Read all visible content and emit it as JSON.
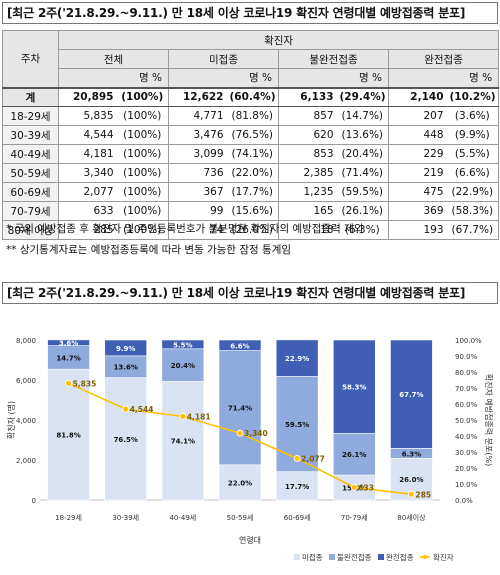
{
  "title": "[최근 2주('21.8.29.~9.11.) 만 18세 이상 코로나19 확진자 연령대별 예방접종력 분포]",
  "table": {
    "week_header": "주차",
    "group_header": "확진자",
    "columns": [
      "전체",
      "미접종",
      "불완전접종",
      "완전접종"
    ],
    "unit": "명 %",
    "rows": [
      {
        "label": "계",
        "cells": [
          [
            "20,895",
            "(100%)"
          ],
          [
            "12,622",
            "(60.4%)"
          ],
          [
            "6,133",
            "(29.4%)"
          ],
          [
            "2,140",
            "(10.2%)"
          ]
        ]
      },
      {
        "label": "18-29세",
        "cells": [
          [
            "5,835",
            "(100%)"
          ],
          [
            "4,771",
            "(81.8%)"
          ],
          [
            "857",
            "(14.7%)"
          ],
          [
            "207",
            "(3.6%)"
          ]
        ]
      },
      {
        "label": "30-39세",
        "cells": [
          [
            "4,544",
            "(100%)"
          ],
          [
            "3,476",
            "(76.5%)"
          ],
          [
            "620",
            "(13.6%)"
          ],
          [
            "448",
            "(9.9%)"
          ]
        ]
      },
      {
        "label": "40-49세",
        "cells": [
          [
            "4,181",
            "(100%)"
          ],
          [
            "3,099",
            "(74.1%)"
          ],
          [
            "853",
            "(20.4%)"
          ],
          [
            "229",
            "(5.5%)"
          ]
        ]
      },
      {
        "label": "50-59세",
        "cells": [
          [
            "3,340",
            "(100%)"
          ],
          [
            "736",
            "(22.0%)"
          ],
          [
            "2,385",
            "(71.4%)"
          ],
          [
            "219",
            "(6.6%)"
          ]
        ]
      },
      {
        "label": "60-69세",
        "cells": [
          [
            "2,077",
            "(100%)"
          ],
          [
            "367",
            "(17.7%)"
          ],
          [
            "1,235",
            "(59.5%)"
          ],
          [
            "475",
            "(22.9%)"
          ]
        ]
      },
      {
        "label": "70-79세",
        "cells": [
          [
            "633",
            "(100%)"
          ],
          [
            "99",
            "(15.6%)"
          ],
          [
            "165",
            "(26.1%)"
          ],
          [
            "369",
            "(58.3%)"
          ]
        ]
      },
      {
        "label": "80세 이상",
        "cells": [
          [
            "285",
            "(100%)"
          ],
          [
            "74",
            "(26.0%)"
          ],
          [
            "18",
            "(6.3%)"
          ],
          [
            "193",
            "(67.7%)"
          ]
        ]
      }
    ]
  },
  "notes": [
    "* 국외 예방접종 후 확진자 및 주민등록번호가 불분명한 확진자의 예방접종력 제외",
    "** 상기통계자료는 예방접종등록에 따라 변동 가능한 잠정 통계임"
  ],
  "chart_title": "[최근 2주('21.8.29.~9.11.) 만 18세 이상 코로나19 확진자 연령대별 예방접종력 분포]",
  "chart_data": {
    "type": "bar",
    "stacked": true,
    "categories": [
      "18-29세",
      "30-39세",
      "40-49세",
      "50-59세",
      "60-69세",
      "70-79세",
      "80세이상"
    ],
    "series": [
      {
        "name": "미접종",
        "values": [
          81.8,
          76.5,
          74.1,
          22.0,
          17.7,
          15.6,
          26.0
        ],
        "color": "#dae3f3"
      },
      {
        "name": "불완전접종",
        "values": [
          14.7,
          13.6,
          20.4,
          71.4,
          59.5,
          26.1,
          6.3
        ],
        "color": "#8faadc"
      },
      {
        "name": "완전접종",
        "values": [
          3.6,
          9.9,
          5.5,
          6.6,
          22.9,
          58.3,
          67.7
        ],
        "color": "#3f5fb5"
      }
    ],
    "line": {
      "name": "확진자",
      "values": [
        5835,
        4544,
        4181,
        3340,
        2077,
        633,
        285
      ],
      "labels": [
        "5,835",
        "4,544",
        "4,181",
        "3,340",
        "2,077",
        "633",
        "285"
      ],
      "color": "#ffc000"
    },
    "xlabel": "연령대",
    "ylabel_left": "확진자 (명)",
    "ylabel_right": "확진자 예방접종력 분포(%)",
    "ylim_left": [
      0,
      8000
    ],
    "yticks_left": [
      "0",
      "2,000",
      "4,000",
      "6,000",
      "8,000"
    ],
    "ylim_right": [
      0,
      100
    ],
    "yticks_right": [
      "0.0%",
      "10.0%",
      "20.0%",
      "30.0%",
      "40.0%",
      "50.0%",
      "60.0%",
      "70.0%",
      "80.0%",
      "90.0%",
      "100.0%"
    ],
    "legend": [
      "미접종",
      "불완전접종",
      "완전접종",
      "확진자"
    ],
    "legend_position": "bottom-right",
    "grid": false
  }
}
